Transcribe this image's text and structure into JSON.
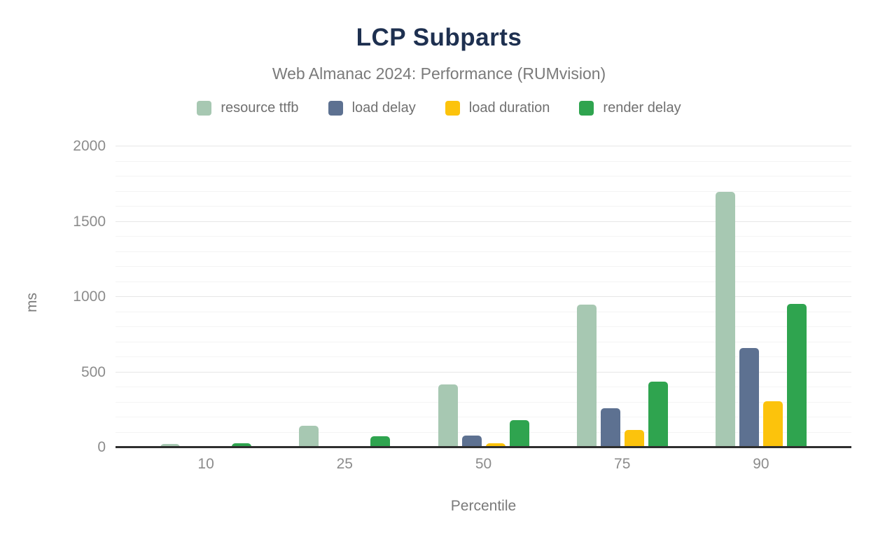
{
  "chart_data": {
    "type": "bar",
    "title": "LCP Subparts",
    "subtitle": "Web Almanac 2024: Performance (RUMvision)",
    "xlabel": "Percentile",
    "ylabel": "ms",
    "ylim": [
      0,
      2000
    ],
    "y_major_ticks": [
      0,
      500,
      1000,
      1500,
      2000
    ],
    "y_minor_step": 100,
    "grid": true,
    "legend_position": "top",
    "categories": [
      "10",
      "25",
      "50",
      "75",
      "90"
    ],
    "series": [
      {
        "name": "resource ttfb",
        "color": "#a7c8b2",
        "values": [
          25,
          145,
          420,
          950,
          1700
        ]
      },
      {
        "name": "load delay",
        "color": "#5d7191",
        "values": [
          5,
          10,
          78,
          260,
          660
        ]
      },
      {
        "name": "load duration",
        "color": "#fcc30c",
        "values": [
          2,
          3,
          28,
          115,
          305
        ]
      },
      {
        "name": "render delay",
        "color": "#2fa44f",
        "values": [
          30,
          75,
          182,
          435,
          955
        ]
      }
    ],
    "colors": {
      "title": "#1e3050",
      "subtitle_text": "#7a7a7a",
      "axis_line": "#2e2e2e",
      "tick_text": "#8c8c8c",
      "grid_major": "#e7e7e7",
      "grid_minor": "#f4f4f4",
      "background": "#ffffff"
    }
  }
}
